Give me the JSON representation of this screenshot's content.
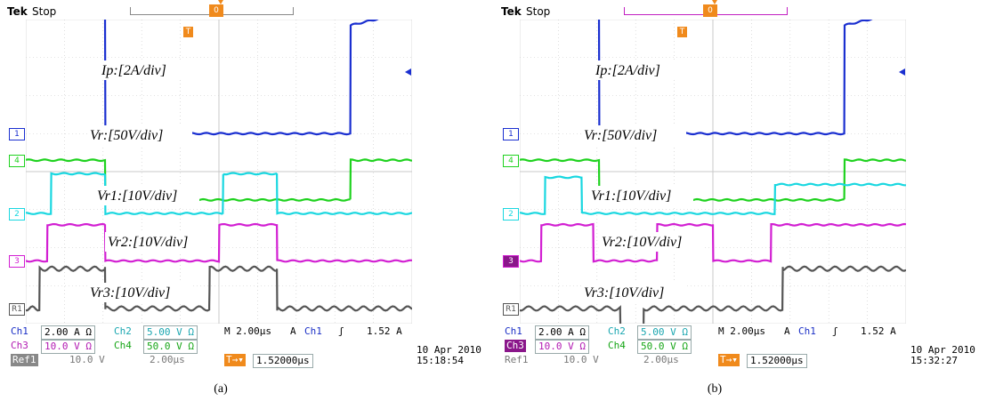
{
  "scopes": [
    {
      "brand": "Tek",
      "status": "Stop",
      "trigger_marker": "T",
      "time_marker": "0",
      "channel_markers": [
        "1",
        "4",
        "2",
        "3",
        "R1"
      ],
      "annotations": [
        "Ip:[2A/div]",
        "Vr:[50V/div]",
        "Vr1:[10V/div]",
        "Vr2:[10V/div]",
        "Vr3:[10V/div]"
      ],
      "settings": {
        "ch1": "Ch1",
        "ch1_scale": "2.00 A Ω",
        "ch2": "Ch2",
        "ch2_scale": "5.00 V Ω",
        "ch3": "Ch3",
        "ch3_scale": "10.0 V Ω",
        "ch4": "Ch4",
        "ch4_scale": "50.0 V Ω",
        "timebase": "M 2.00μs",
        "trig_mode": "A",
        "trig_src": "Ch1",
        "trig_slope": "ʃ",
        "trig_level": "1.52 A",
        "ref": "Ref1",
        "ref_scale": "10.0 V",
        "ref_time": "2.00μs",
        "trig_pos_icon": "T→▾",
        "trig_pos": "1.52000μs"
      },
      "date": "10 Apr 2010",
      "time": "15:18:54",
      "caption": "(a)",
      "ch3_highlight": false
    },
    {
      "brand": "Tek",
      "status": "Stop",
      "trigger_marker": "T",
      "time_marker": "0",
      "channel_markers": [
        "1",
        "4",
        "2",
        "3",
        "R1"
      ],
      "annotations": [
        "Ip:[2A/div]",
        "Vr:[50V/div]",
        "Vr1:[10V/div]",
        "Vr2:[10V/div]",
        "Vr3:[10V/div]"
      ],
      "settings": {
        "ch1": "Ch1",
        "ch1_scale": "2.00 A Ω",
        "ch2": "Ch2",
        "ch2_scale": "5.00 V Ω",
        "ch3": "Ch3",
        "ch3_scale": "10.0 V Ω",
        "ch4": "Ch4",
        "ch4_scale": "50.0 V Ω",
        "timebase": "M 2.00μs",
        "trig_mode": "A",
        "trig_src": "Ch1",
        "trig_slope": "ʃ",
        "trig_level": "1.52 A",
        "ref": "Ref1",
        "ref_scale": "10.0 V",
        "ref_time": "2.00μs",
        "trig_pos_icon": "T→▾",
        "trig_pos": "1.52000μs"
      },
      "date": "10 Apr 2010",
      "time": "15:32:27",
      "caption": "(b)",
      "ch3_highlight": true
    }
  ],
  "colors": {
    "ch1": "#1a2fd0",
    "ch4": "#1fd21f",
    "ch2": "#19d7e0",
    "ch3": "#d21fd2",
    "ref1": "#555555",
    "grid": "#c8c8c8",
    "trigger": "#f08a1c"
  },
  "chart_data": [
    {
      "type": "line",
      "title": "",
      "xlabel": "",
      "ylabel": "",
      "grid": true,
      "x_unit": "μs",
      "x_per_div": 2,
      "x_range": [
        -10,
        10
      ],
      "series": [
        {
          "name": "Ip",
          "scale": "2A/div",
          "x": [
            -10,
            -5.9,
            -5.88,
            6.8,
            6.82,
            10
          ],
          "y": [
            3.3,
            3.5,
            0.0,
            0.0,
            3.0,
            3.4
          ]
        },
        {
          "name": "Vr",
          "scale": "50V/div",
          "x": [
            -10,
            -5.9,
            -5.88,
            6.8,
            6.82,
            10
          ],
          "y": [
            0.0,
            0.0,
            -1.1,
            -1.1,
            0.0,
            0.0
          ]
        },
        {
          "name": "Vr1",
          "scale": "10V/div",
          "x": [
            -10,
            -8.7,
            -8.68,
            -5.9,
            -5.88,
            0.2,
            0.22,
            3.0,
            3.02,
            10
          ],
          "y": [
            0,
            0,
            1.1,
            1.1,
            0,
            0,
            1.1,
            1.1,
            0,
            0
          ]
        },
        {
          "name": "Vr2",
          "scale": "10V/div",
          "x": [
            -10,
            -8.9,
            -8.88,
            -5.9,
            -5.88,
            0.0,
            0.02,
            3.0,
            3.02,
            10
          ],
          "y": [
            0,
            0,
            1.0,
            1.0,
            0,
            0,
            1.0,
            1.0,
            0,
            0
          ]
        },
        {
          "name": "Vr3",
          "scale": "10V/div",
          "x": [
            -10,
            -9.3,
            -9.28,
            -5.9,
            -5.88,
            -0.5,
            -0.48,
            3.0,
            3.02,
            10
          ],
          "y": [
            0,
            0,
            1.1,
            1.1,
            0,
            0,
            1.1,
            1.1,
            0,
            0
          ]
        }
      ]
    },
    {
      "type": "line",
      "title": "",
      "xlabel": "",
      "ylabel": "",
      "grid": true,
      "x_unit": "μs",
      "x_per_div": 2,
      "x_range": [
        -10,
        10
      ],
      "series": [
        {
          "name": "Ip",
          "scale": "2A/div",
          "x": [
            -10,
            -5.9,
            -5.88,
            6.8,
            6.82,
            10
          ],
          "y": [
            3.3,
            3.5,
            0.0,
            0.0,
            3.0,
            3.4
          ]
        },
        {
          "name": "Vr",
          "scale": "50V/div",
          "x": [
            -10,
            -5.9,
            -5.88,
            6.8,
            6.82,
            10
          ],
          "y": [
            0.0,
            0.0,
            -1.1,
            -1.1,
            0.0,
            0.0
          ]
        },
        {
          "name": "Vr1",
          "scale": "10V/div",
          "x": [
            -10,
            -8.7,
            -8.68,
            -6.8,
            -6.78,
            3.2,
            3.22,
            10
          ],
          "y": [
            0,
            0,
            1.0,
            1.0,
            0,
            0,
            0.8,
            0.8
          ]
        },
        {
          "name": "Vr2",
          "scale": "10V/div",
          "x": [
            -10,
            -8.9,
            -8.88,
            -6.2,
            -6.18,
            -2.9,
            -2.88,
            0.0,
            0.02,
            3.0,
            3.02,
            10
          ],
          "y": [
            0,
            0,
            1.0,
            1.0,
            0,
            0,
            1.0,
            1.0,
            0,
            0,
            1.0,
            1.0
          ]
        },
        {
          "name": "Vr3",
          "scale": "10V/div",
          "x": [
            -10,
            -4.8,
            -4.78,
            -3.6,
            -3.58,
            3.6,
            3.62,
            10
          ],
          "y": [
            0,
            0,
            -1.1,
            -1.1,
            0,
            0,
            1.1,
            1.1
          ]
        }
      ]
    }
  ]
}
